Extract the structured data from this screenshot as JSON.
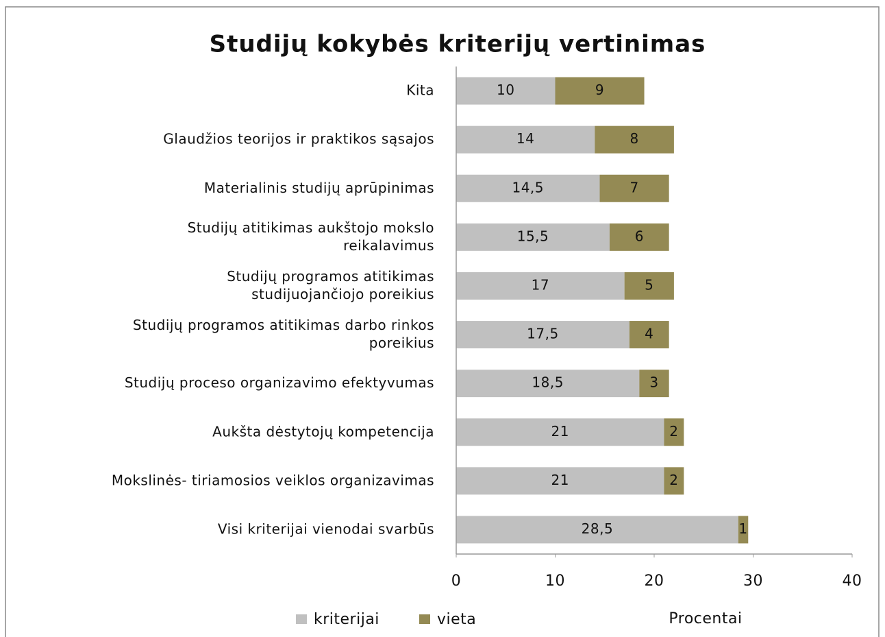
{
  "chart_data": {
    "type": "stacked-barh",
    "title": "Studijų kokybės kriterijų vertinimas",
    "categories": [
      "Kita",
      "Glaudžios teorijos ir praktikos sąsajos",
      "Materialinis studijų aprūpinimas",
      "Studijų atitikimas aukštojo mokslo\nreikalavimus",
      "Studijų programos atitikimas\nstudijuojančiojo poreikius",
      "Studijų programos atitikimas darbo rinkos\nporeikius",
      "Studijų proceso organizavimo efektyvumas",
      "Aukšta dėstytojų kompetencija",
      "Mokslinės- tiriamosios veiklos organizavimas",
      "Visi kriterijai vienodai svarbūs"
    ],
    "series": [
      {
        "name": "kriterijai",
        "color": "#c0c0c0",
        "values": [
          10,
          14,
          14.5,
          15.5,
          17,
          17.5,
          18.5,
          21,
          21,
          28.5
        ],
        "value_labels": [
          "10",
          "14",
          "14,5",
          "15,5",
          "17",
          "17,5",
          "18,5",
          "21",
          "21",
          "28,5"
        ]
      },
      {
        "name": "vieta",
        "color": "#948a54",
        "values": [
          9,
          8,
          7,
          6,
          5,
          4,
          3,
          2,
          2,
          1
        ]
      }
    ],
    "xlabel": "Procentai",
    "xlim": [
      0,
      40
    ],
    "xticks": [
      0,
      10,
      20,
      30,
      40
    ]
  }
}
